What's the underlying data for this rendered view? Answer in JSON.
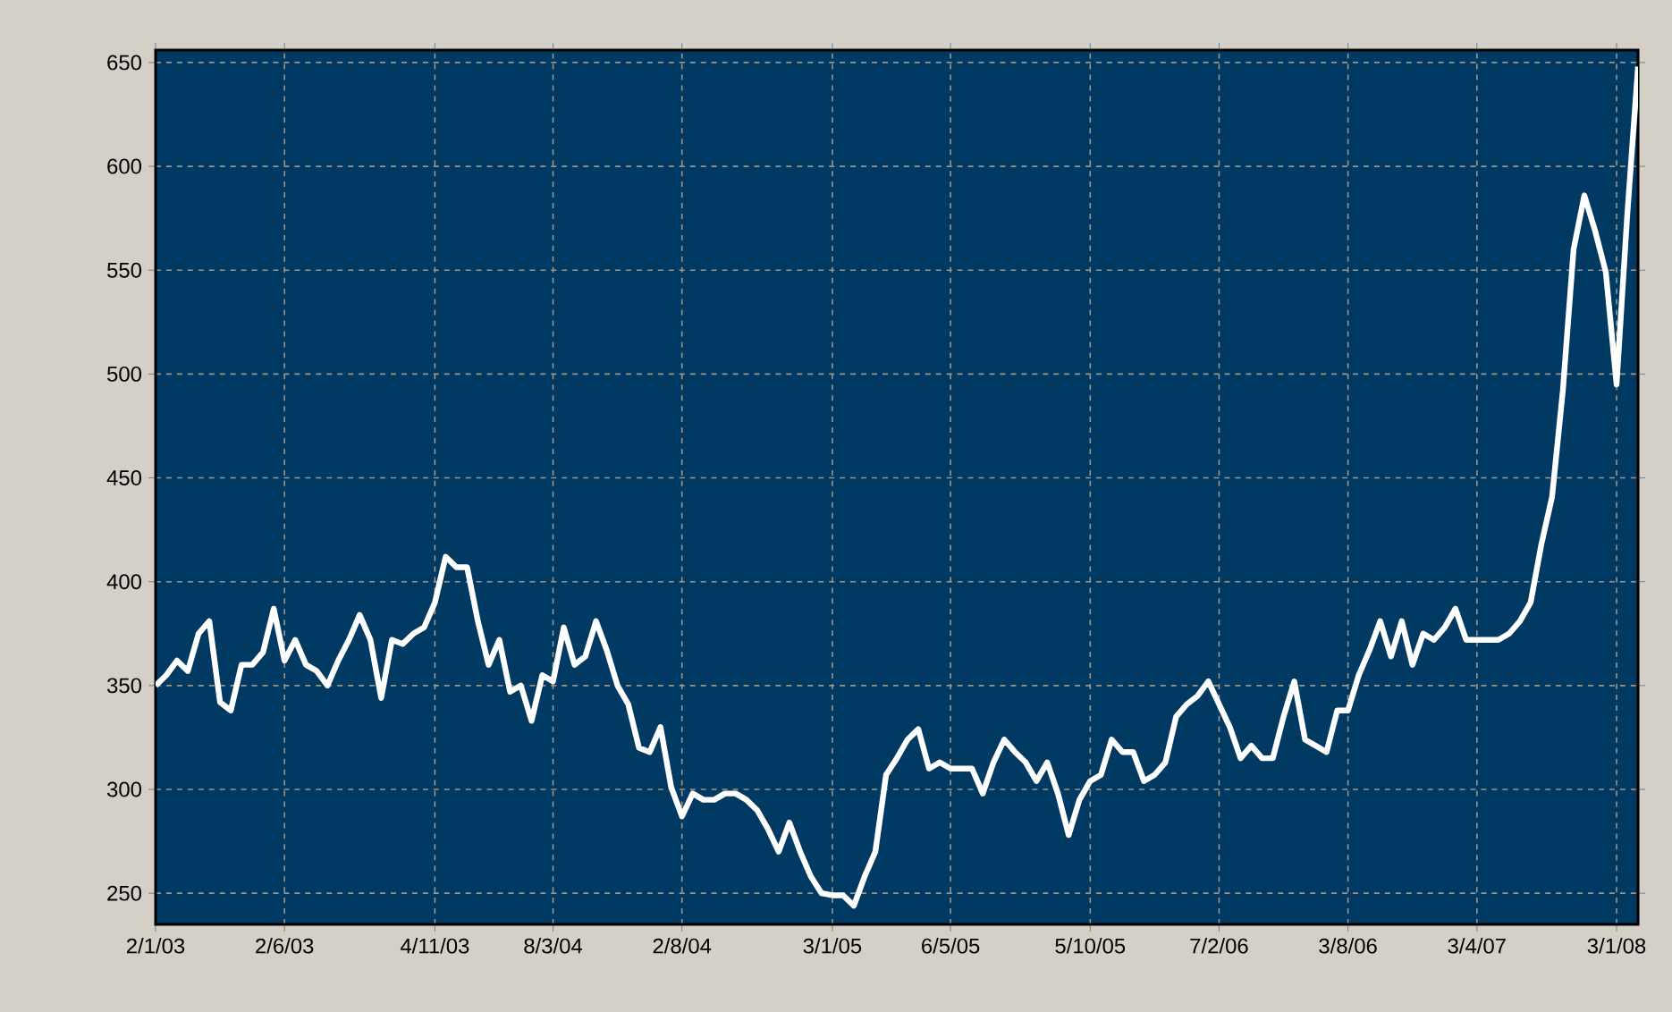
{
  "chart_data": {
    "type": "line",
    "categories": [
      "2/1/03",
      null,
      null,
      null,
      null,
      null,
      null,
      null,
      null,
      null,
      null,
      null,
      "2/6/03",
      null,
      null,
      null,
      null,
      null,
      null,
      null,
      null,
      null,
      null,
      null,
      null,
      null,
      "4/11/03",
      null,
      null,
      null,
      null,
      null,
      null,
      null,
      null,
      null,
      null,
      "8/3/04",
      null,
      null,
      null,
      null,
      null,
      null,
      null,
      null,
      null,
      null,
      null,
      "2/8/04",
      null,
      null,
      null,
      null,
      null,
      null,
      null,
      null,
      null,
      null,
      null,
      null,
      null,
      "3/1/05",
      null,
      null,
      null,
      null,
      null,
      null,
      null,
      null,
      null,
      null,
      "6/5/05",
      null,
      null,
      null,
      null,
      null,
      null,
      null,
      null,
      null,
      null,
      null,
      null,
      "5/10/05",
      null,
      null,
      null,
      null,
      null,
      null,
      null,
      null,
      null,
      null,
      null,
      "7/2/06",
      null,
      null,
      null,
      null,
      null,
      null,
      null,
      null,
      null,
      null,
      null,
      "3/8/06",
      null,
      null,
      null,
      null,
      null,
      null,
      null,
      null,
      null,
      null,
      null,
      "3/4/07",
      null,
      null,
      null,
      null,
      null,
      null,
      null,
      null,
      null,
      null,
      null,
      null,
      "3/1/08",
      null,
      null
    ],
    "series": [
      {
        "color": "#ffffff",
        "values": [
          350,
          355,
          362,
          357,
          375,
          381,
          342,
          338,
          360,
          360,
          366,
          387,
          362,
          372,
          360,
          357,
          350,
          362,
          372,
          384,
          372,
          344,
          372,
          370,
          375,
          378,
          390,
          412,
          407,
          407,
          381,
          360,
          372,
          347,
          350,
          333,
          355,
          352,
          378,
          360,
          364,
          381,
          367,
          350,
          341,
          320,
          318,
          330,
          301,
          287,
          298,
          295,
          295,
          298,
          298,
          295,
          290,
          281,
          270,
          284,
          270,
          258,
          250,
          249,
          249,
          244,
          258,
          270,
          307,
          315,
          324,
          329,
          310,
          313,
          310,
          310,
          310,
          298,
          313,
          324,
          318,
          313,
          304,
          313,
          298,
          278,
          295,
          304,
          307,
          324,
          318,
          318,
          304,
          307,
          313,
          335,
          341,
          345,
          352,
          341,
          330,
          315,
          321,
          315,
          315,
          335,
          352,
          324,
          321,
          318,
          338,
          338,
          355,
          367,
          381,
          364,
          381,
          360,
          375,
          372,
          378,
          387,
          372,
          372,
          372,
          372,
          375,
          381,
          390,
          418,
          441,
          492,
          560,
          586,
          569,
          549,
          495,
          577,
          648
        ]
      }
    ],
    "ylim": [
      235,
      656
    ],
    "yticks": [
      250,
      300,
      350,
      400,
      450,
      500,
      550,
      600,
      650
    ],
    "grid": true,
    "line_style": "solid",
    "marker": "none"
  }
}
